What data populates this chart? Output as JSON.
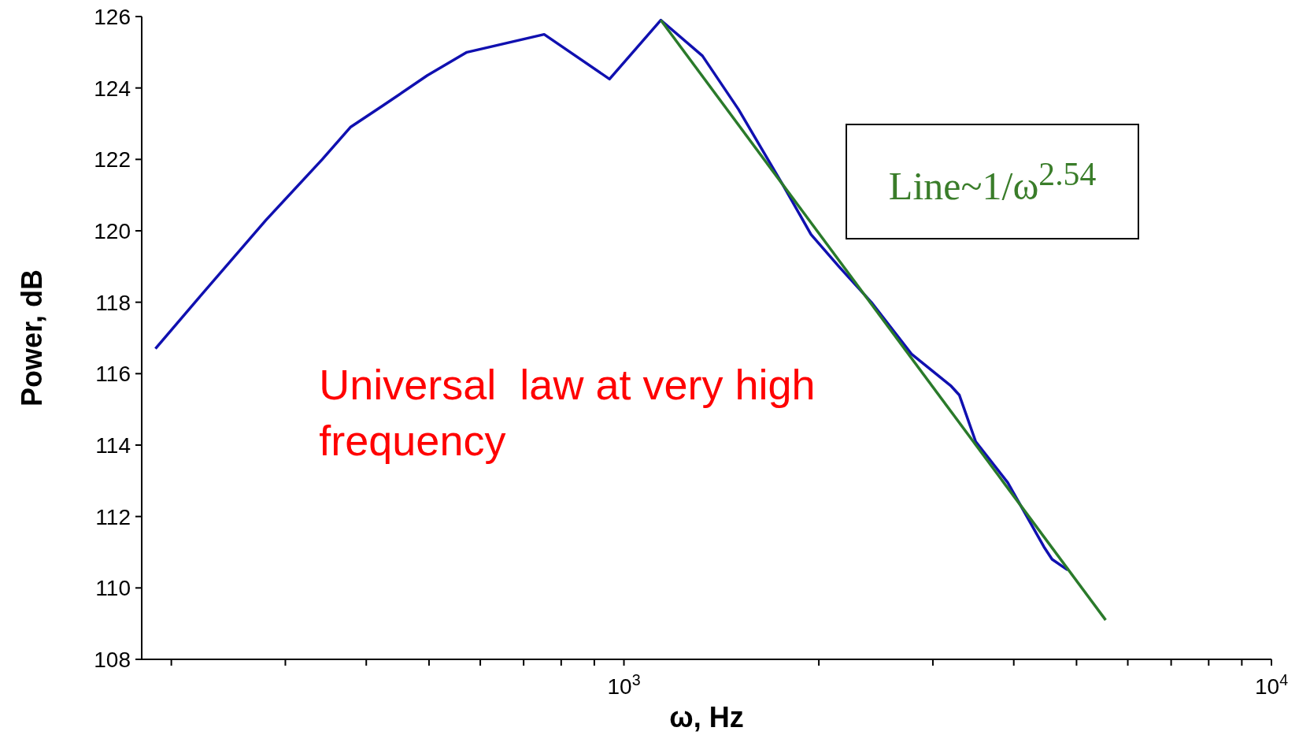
{
  "chart_data": {
    "type": "line",
    "xlabel": "ω, Hz",
    "ylabel": "Power, dB",
    "xlim": [
      180,
      10000
    ],
    "log": "x",
    "xticks": [
      {
        "value": 200,
        "label": null
      },
      {
        "value": 300,
        "label": null
      },
      {
        "value": 400,
        "label": null
      },
      {
        "value": 500,
        "label": null
      },
      {
        "value": 600,
        "label": null
      },
      {
        "value": 700,
        "label": null
      },
      {
        "value": 800,
        "label": null
      },
      {
        "value": 900,
        "label": null
      },
      {
        "value": 1000,
        "label": "10$^{3}$"
      },
      {
        "value": 2000,
        "label": null
      },
      {
        "value": 3000,
        "label": null
      },
      {
        "value": 4000,
        "label": null
      },
      {
        "value": 5000,
        "label": null
      },
      {
        "value": 6000,
        "label": null
      },
      {
        "value": 7000,
        "label": null
      },
      {
        "value": 8000,
        "label": null
      },
      {
        "value": 9000,
        "label": null
      },
      {
        "value": 10000,
        "label": "10$^{4}$"
      }
    ],
    "ylim": [
      108,
      126
    ],
    "yticks": [
      108,
      110,
      112,
      114,
      116,
      118,
      120,
      122,
      124,
      126
    ],
    "marker": "none",
    "line_style": "solid",
    "series": [
      {
        "color": "#1010b0",
        "x": [
          189,
          220,
          280,
          342,
          378,
          424,
          497,
          572,
          753,
          950,
          1140,
          1322,
          1503,
          1758,
          1945,
          2148,
          2410,
          2780,
          3202,
          3296,
          3493,
          3915,
          4453,
          4584,
          4846
        ],
        "values": [
          116.7,
          118.1,
          120.3,
          122.0,
          122.9,
          123.5,
          124.35,
          125.0,
          125.5,
          124.25,
          125.9,
          124.9,
          123.4,
          121.3,
          119.9,
          119.0,
          118.0,
          116.55,
          115.65,
          115.4,
          114.1,
          112.95,
          111.15,
          110.8,
          110.5
        ]
      },
      {
        "type": "line",
        "color": "#2a7a2a",
        "x": [
          1140,
          5546
        ],
        "values": [
          125.9,
          109.1
        ]
      }
    ],
    "annotations": [
      "Line~1/ω$^{2.54}$",
      "Universal  law at very high frequency"
    ]
  }
}
